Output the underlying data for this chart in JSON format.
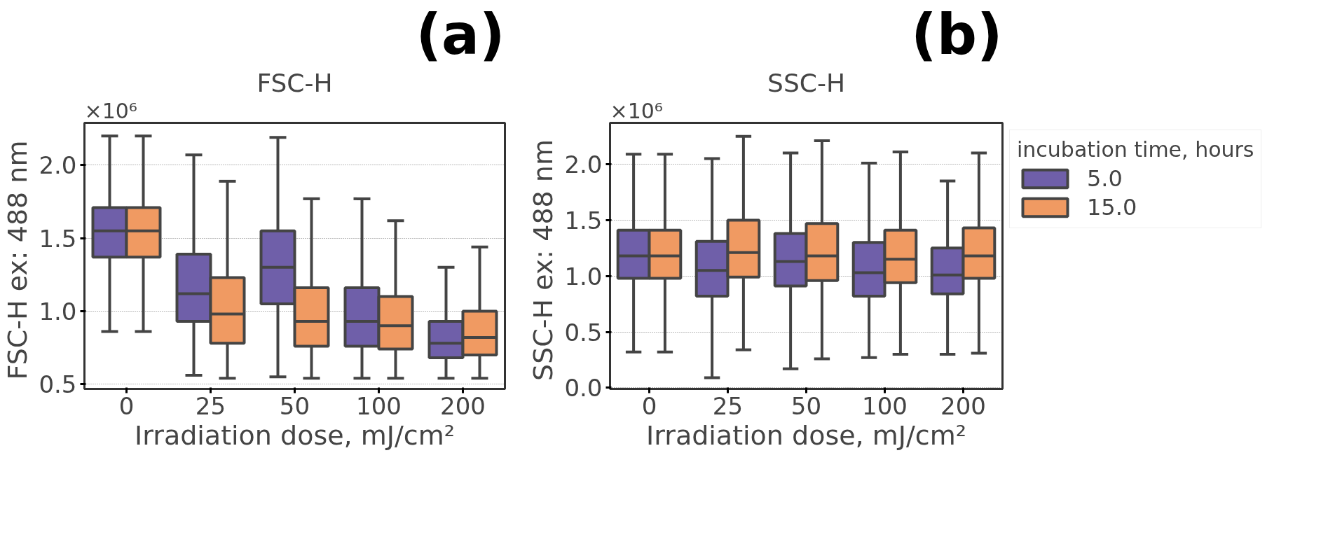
{
  "chart_data": [
    {
      "type": "box",
      "title": "FSC-H",
      "xlabel": "Irradiation dose, mJ/cm²",
      "ylabel": "FSC-H ex:  488 nm",
      "categories": [
        "0",
        "25",
        "50",
        "100",
        "200"
      ],
      "ylim": [
        0.467,
        2.29
      ],
      "yticks": [
        {
          "value": 0.5,
          "label": "0.5"
        },
        {
          "value": 1,
          "label": "1.0"
        },
        {
          "value": 1.5,
          "label": "1.5"
        },
        {
          "value": 2,
          "label": "2.0"
        }
      ],
      "grid": "y",
      "legend": false,
      "annotations": [
        "×10⁶",
        "(a)"
      ],
      "series": [
        {
          "color": "#6f5fa9",
          "boxes": [
            {
              "low": 0.86,
              "q1": 1.37,
              "median": 1.55,
              "q3": 1.71,
              "high": 2.2
            },
            {
              "low": 0.56,
              "q1": 0.93,
              "median": 1.12,
              "q3": 1.39,
              "high": 2.07
            },
            {
              "low": 0.55,
              "q1": 1.05,
              "median": 1.3,
              "q3": 1.55,
              "high": 2.19
            },
            {
              "low": 0.54,
              "q1": 0.76,
              "median": 0.93,
              "q3": 1.16,
              "high": 1.77
            },
            {
              "low": 0.54,
              "q1": 0.68,
              "median": 0.78,
              "q3": 0.93,
              "high": 1.3
            }
          ]
        },
        {
          "color": "#f09a62",
          "boxes": [
            {
              "low": 0.86,
              "q1": 1.37,
              "median": 1.55,
              "q3": 1.71,
              "high": 2.2
            },
            {
              "low": 0.54,
              "q1": 0.78,
              "median": 0.98,
              "q3": 1.23,
              "high": 1.89
            },
            {
              "low": 0.54,
              "q1": 0.76,
              "median": 0.93,
              "q3": 1.16,
              "high": 1.77
            },
            {
              "low": 0.54,
              "q1": 0.74,
              "median": 0.9,
              "q3": 1.1,
              "high": 1.62
            },
            {
              "low": 0.54,
              "q1": 0.7,
              "median": 0.82,
              "q3": 1.0,
              "high": 1.44
            }
          ]
        }
      ]
    },
    {
      "type": "box",
      "title": "SSC-H",
      "xlabel": "Irradiation dose, mJ/cm²",
      "ylabel": "SSC-H ex:  488 nm",
      "categories": [
        "0",
        "25",
        "50",
        "100",
        "200"
      ],
      "ylim": [
        -0.01,
        2.37
      ],
      "yticks": [
        {
          "value": 0,
          "label": "0.0"
        },
        {
          "value": 0.5,
          "label": "0.5"
        },
        {
          "value": 1,
          "label": "1.0"
        },
        {
          "value": 1.5,
          "label": "1.5"
        },
        {
          "value": 2,
          "label": "2.0"
        }
      ],
      "grid": "y",
      "legend": "right",
      "legend_title": "incubation time, hours",
      "annotations": [
        "×10⁶",
        "(b)"
      ],
      "series": [
        {
          "name": "5.0",
          "color": "#6f5fa9",
          "boxes": [
            {
              "low": 0.32,
              "q1": 0.98,
              "median": 1.18,
              "q3": 1.41,
              "high": 2.09
            },
            {
              "low": 0.09,
              "q1": 0.82,
              "median": 1.05,
              "q3": 1.31,
              "high": 2.05
            },
            {
              "low": 0.17,
              "q1": 0.91,
              "median": 1.13,
              "q3": 1.38,
              "high": 2.1
            },
            {
              "low": 0.27,
              "q1": 0.82,
              "median": 1.03,
              "q3": 1.3,
              "high": 2.01
            },
            {
              "low": 0.3,
              "q1": 0.84,
              "median": 1.01,
              "q3": 1.25,
              "high": 1.85
            }
          ]
        },
        {
          "name": "15.0",
          "color": "#f09a62",
          "boxes": [
            {
              "low": 0.32,
              "q1": 0.98,
              "median": 1.18,
              "q3": 1.41,
              "high": 2.09
            },
            {
              "low": 0.34,
              "q1": 0.99,
              "median": 1.21,
              "q3": 1.5,
              "high": 2.25
            },
            {
              "low": 0.26,
              "q1": 0.96,
              "median": 1.18,
              "q3": 1.47,
              "high": 2.21
            },
            {
              "low": 0.3,
              "q1": 0.94,
              "median": 1.15,
              "q3": 1.41,
              "high": 2.11
            },
            {
              "low": 0.31,
              "q1": 0.98,
              "median": 1.18,
              "q3": 1.43,
              "high": 2.1
            }
          ]
        }
      ]
    }
  ]
}
